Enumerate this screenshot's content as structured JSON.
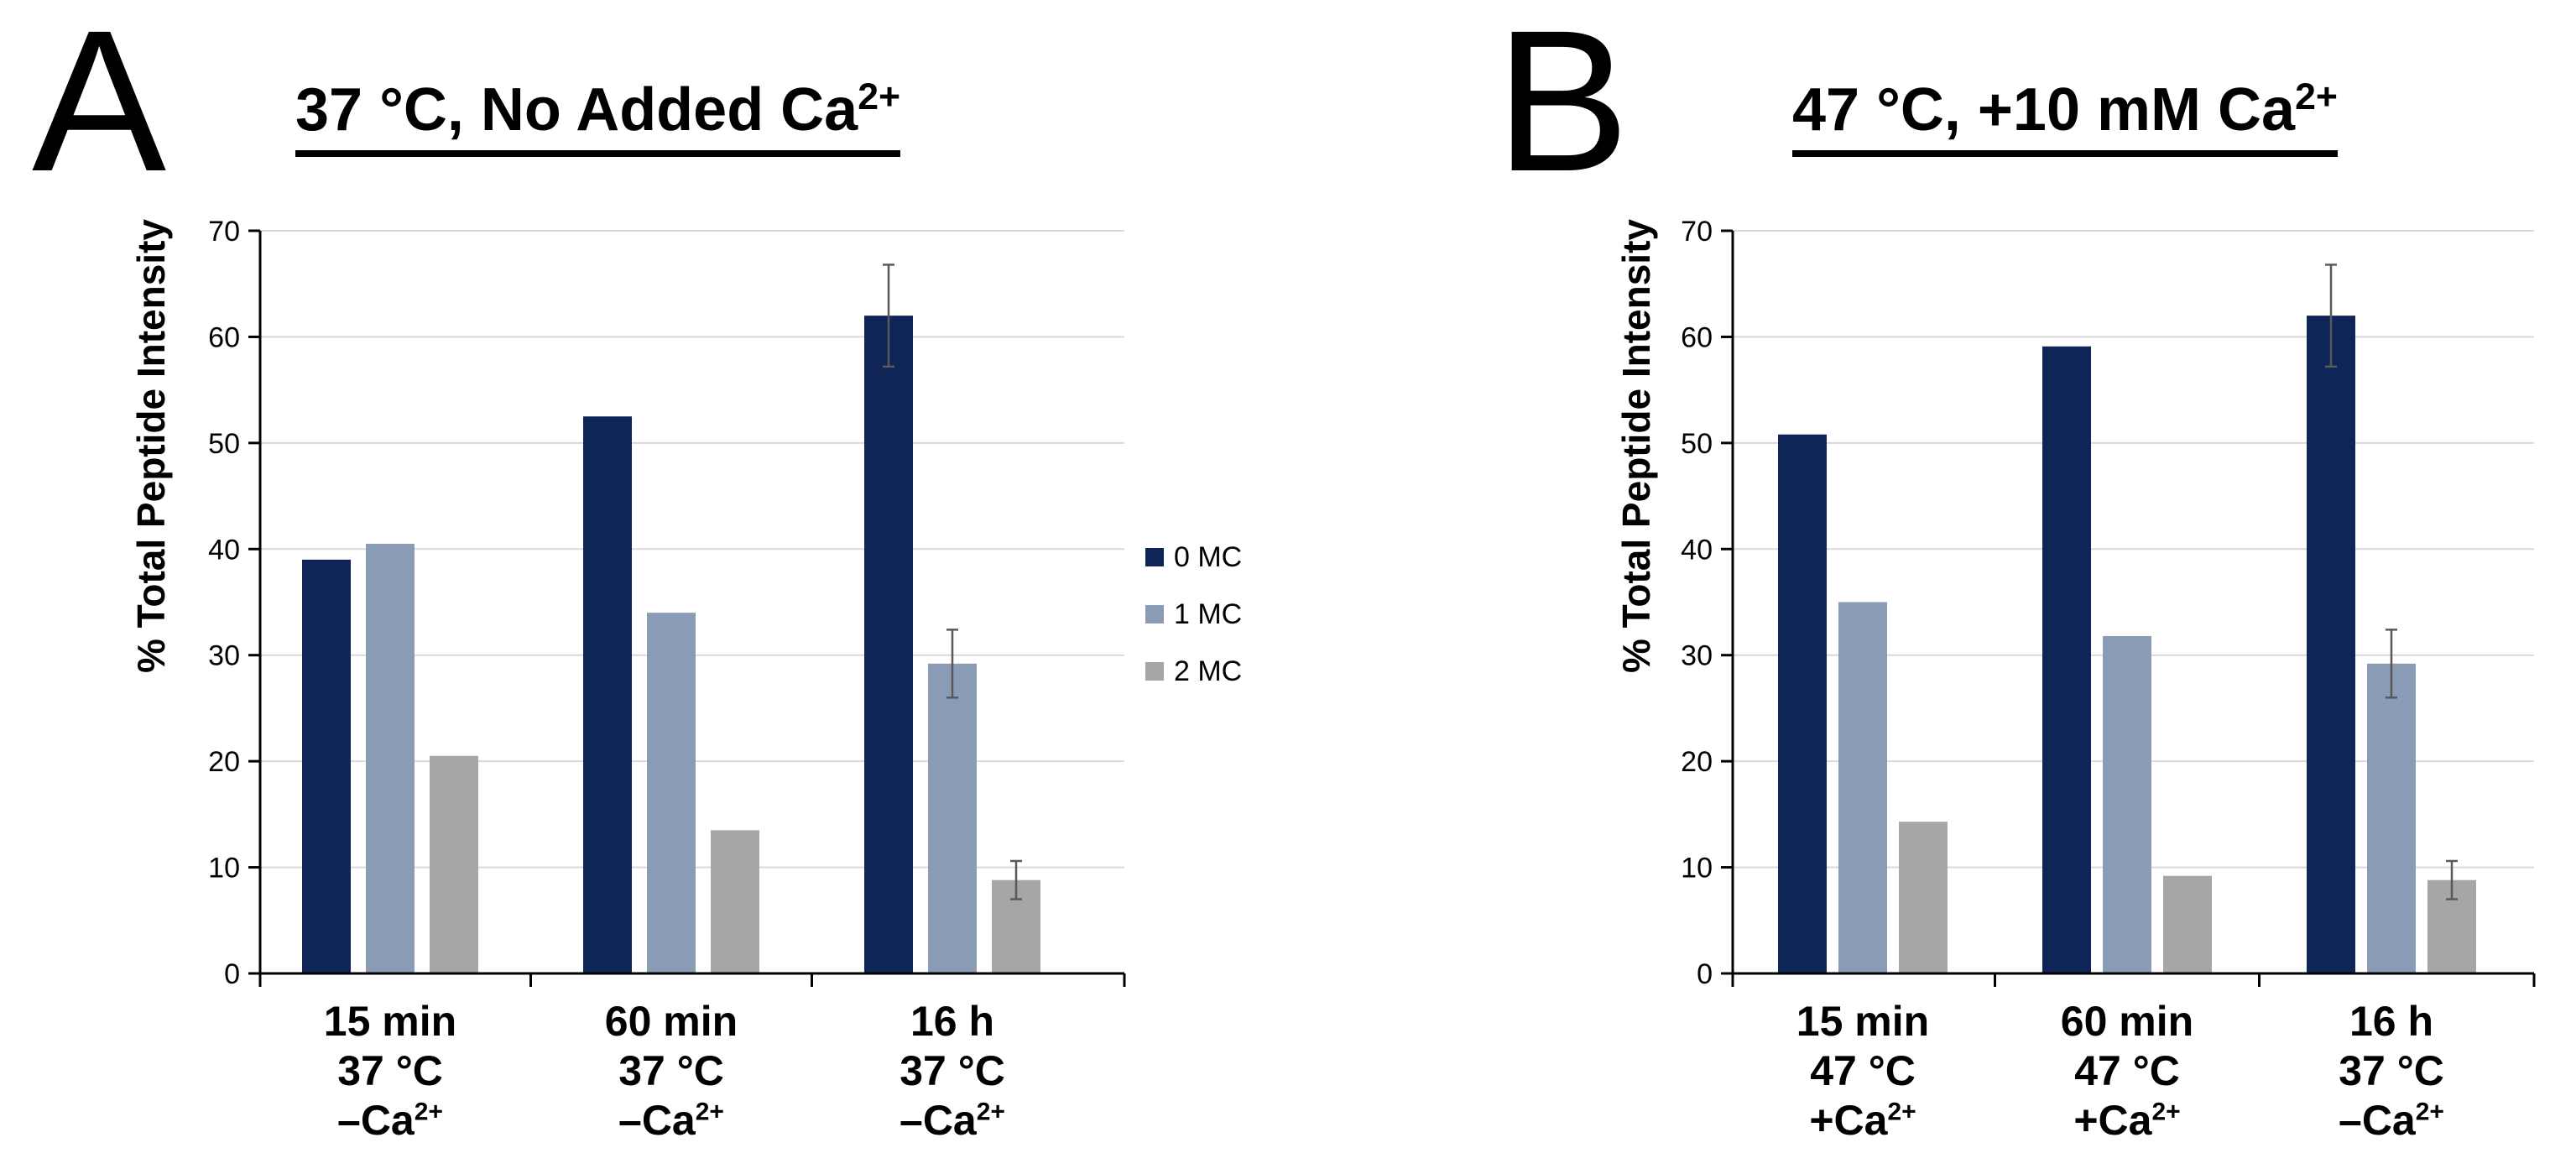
{
  "colors": {
    "mc0": "#0f2457",
    "mc1": "#8a9bb5",
    "mc2": "#a6a6a6",
    "grid": "#d9d9d9",
    "axis": "#000000"
  },
  "legend": [
    {
      "label": "0 MC",
      "color": "#0f2457"
    },
    {
      "label": "1 MC",
      "color": "#8a9bb5"
    },
    {
      "label": "2 MC",
      "color": "#a6a6a6"
    }
  ],
  "chart_data": [
    {
      "type": "bar",
      "panel": "A",
      "title": "37 °C,  No Added Ca",
      "title_sup": "2+",
      "ylabel": "% Total Peptide Intensity",
      "ylim": [
        0,
        70
      ],
      "yticks": [
        0,
        10,
        20,
        30,
        40,
        50,
        60,
        70
      ],
      "grid": true,
      "categories": [
        {
          "l1": "15 min",
          "l2": "37 °C",
          "l3": "–Ca",
          "sup": "2+"
        },
        {
          "l1": "60 min",
          "l2": "37 °C",
          "l3": "–Ca",
          "sup": "2+"
        },
        {
          "l1": "16 h",
          "l2": "37 °C",
          "l3": "–Ca",
          "sup": "2+"
        }
      ],
      "series": [
        {
          "name": "0 MC",
          "values": [
            39,
            52.5,
            62
          ],
          "errors": [
            null,
            null,
            4.8
          ]
        },
        {
          "name": "1 MC",
          "values": [
            40.5,
            34,
            29.2
          ],
          "errors": [
            null,
            null,
            3.2
          ]
        },
        {
          "name": "2 MC",
          "values": [
            20.5,
            13.5,
            8.8
          ],
          "errors": [
            null,
            null,
            1.8
          ]
        }
      ]
    },
    {
      "type": "bar",
      "panel": "B",
      "title": "47 °C, +10 mM Ca",
      "title_sup": "2+",
      "ylabel": "% Total Peptide Intensity",
      "ylim": [
        0,
        70
      ],
      "yticks": [
        0,
        10,
        20,
        30,
        40,
        50,
        60,
        70
      ],
      "grid": true,
      "categories": [
        {
          "l1": "15 min",
          "l2": "47 °C",
          "l3": "+Ca",
          "sup": "2+"
        },
        {
          "l1": "60 min",
          "l2": "47 °C",
          "l3": "+Ca",
          "sup": "2+"
        },
        {
          "l1": "16 h",
          "l2": "37 °C",
          "l3": "–Ca",
          "sup": "2+"
        }
      ],
      "series": [
        {
          "name": "0 MC",
          "values": [
            50.8,
            59.1,
            62
          ],
          "errors": [
            null,
            null,
            4.8
          ]
        },
        {
          "name": "1 MC",
          "values": [
            35,
            31.8,
            29.2
          ],
          "errors": [
            null,
            null,
            3.2
          ]
        },
        {
          "name": "2 MC",
          "values": [
            14.3,
            9.2,
            8.8
          ],
          "errors": [
            null,
            null,
            1.8
          ]
        }
      ]
    }
  ]
}
